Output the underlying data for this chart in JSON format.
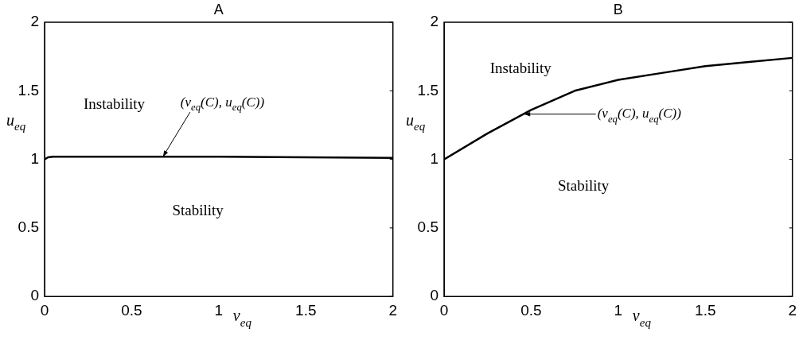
{
  "chart_data": [
    {
      "type": "line",
      "title": "A",
      "xlabel": "v$_{eq}$",
      "ylabel": "u$_{eq}$",
      "x": [
        0,
        0.02,
        0.05,
        0.1,
        0.5,
        1,
        1.5,
        2
      ],
      "series": [
        {
          "color": "#000000",
          "values": [
            1,
            1.015,
            1.02,
            1.02,
            1.02,
            1.02,
            1.015,
            1.01
          ]
        }
      ],
      "xlim": [
        0,
        2
      ],
      "ylim": [
        0,
        2
      ],
      "xticks": [
        0,
        0.5,
        1,
        1.5,
        2
      ],
      "yticks": [
        0,
        0.5,
        1,
        1.5,
        2
      ],
      "marker": "none",
      "line_style": "solid",
      "annotations": [
        "Instability",
        "Stability",
        {
          "text": "(v$_{eq}$(C), u$_{eq}$(C))",
          "x": 0.68,
          "y": 1.02
        }
      ]
    },
    {
      "type": "line",
      "title": "B",
      "xlabel": "v$_{eq}$",
      "ylabel": "u$_{eq}$",
      "x": [
        0,
        0.25,
        0.5,
        0.75,
        1,
        1.25,
        1.5,
        1.75,
        2
      ],
      "series": [
        {
          "color": "#000000",
          "values": [
            1,
            1.19,
            1.36,
            1.5,
            1.58,
            1.63,
            1.68,
            1.71,
            1.74
          ]
        }
      ],
      "xlim": [
        0,
        2
      ],
      "ylim": [
        0,
        2
      ],
      "xticks": [
        0,
        0.5,
        1,
        1.5,
        2
      ],
      "yticks": [
        0,
        0.5,
        1,
        1.5,
        2
      ],
      "marker": "none",
      "line_style": "solid",
      "annotations": [
        "Instability",
        "Stability",
        {
          "text": "(v$_{eq}$(C), u$_{eq}$(C))",
          "x": 0.46,
          "y": 1.33
        }
      ]
    }
  ]
}
